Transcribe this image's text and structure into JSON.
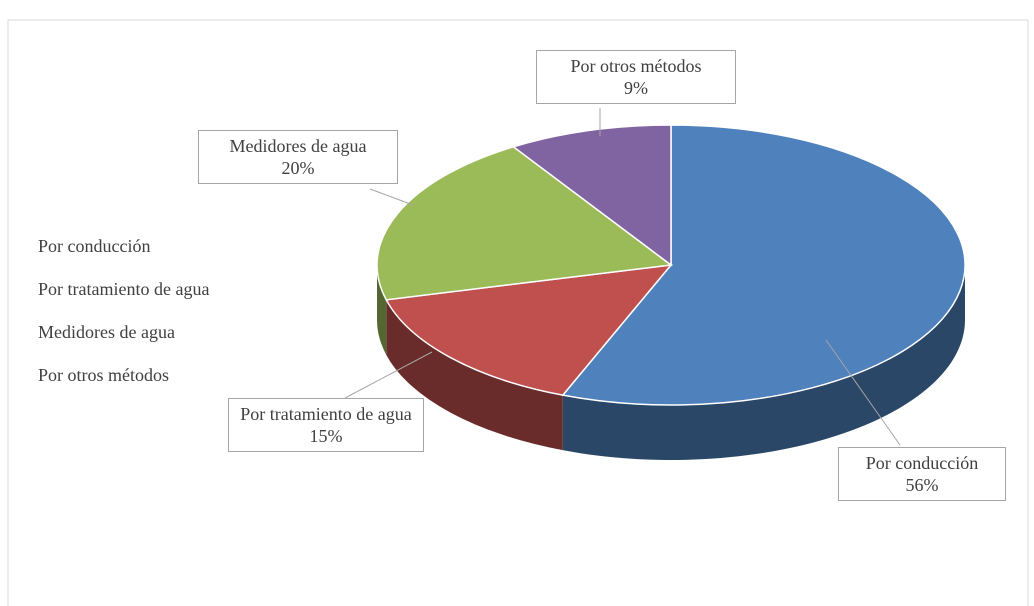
{
  "chart_data": {
    "type": "pie3d",
    "categories": [
      "Por conducción",
      "Por tratamiento de agua",
      "Medidores de agua",
      "Por otros métodos"
    ],
    "values": [
      56,
      15,
      20,
      9
    ],
    "value_labels": [
      "56%",
      "15%",
      "20%",
      "9%"
    ],
    "colors": [
      "#4f81bd",
      "#c0504d",
      "#9bbb59",
      "#8064a2"
    ],
    "legend": "left"
  }
}
